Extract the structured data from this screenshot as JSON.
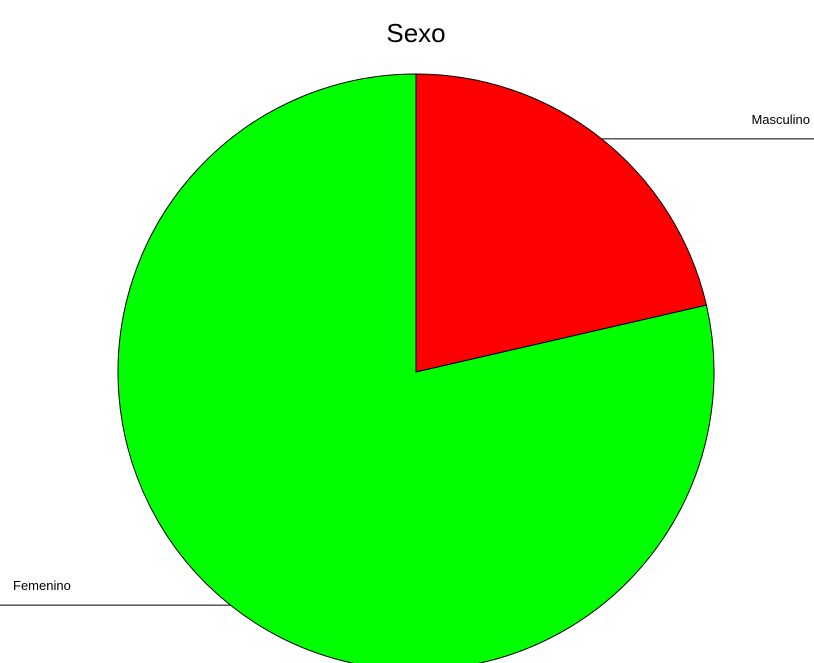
{
  "chart_data": {
    "type": "pie",
    "title": "Sexo",
    "categories": [
      "Masculino",
      "Femenino"
    ],
    "values": [
      21.4,
      78.6
    ],
    "colors": [
      "#ff0000",
      "#00ff00"
    ]
  }
}
